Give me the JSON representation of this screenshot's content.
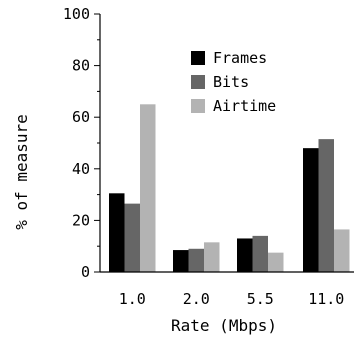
{
  "chart_data": {
    "type": "bar",
    "xlabel": "Rate (Mbps)",
    "ylabel": "% of measure",
    "ylim": [
      0,
      100
    ],
    "yticks": [
      0,
      20,
      40,
      60,
      80,
      100
    ],
    "categories": [
      "1.0",
      "2.0",
      "5.5",
      "11.0"
    ],
    "series": [
      {
        "name": "Frames",
        "color": "#000000",
        "values": [
          30.5,
          8.5,
          13.0,
          48.0
        ]
      },
      {
        "name": "Bits",
        "color": "#666666",
        "values": [
          26.5,
          9.0,
          14.0,
          51.5
        ]
      },
      {
        "name": "Airtime",
        "color": "#b3b3b3",
        "values": [
          65.0,
          11.5,
          7.5,
          16.5
        ]
      }
    ],
    "legend_position": "top-right",
    "grid": false
  }
}
